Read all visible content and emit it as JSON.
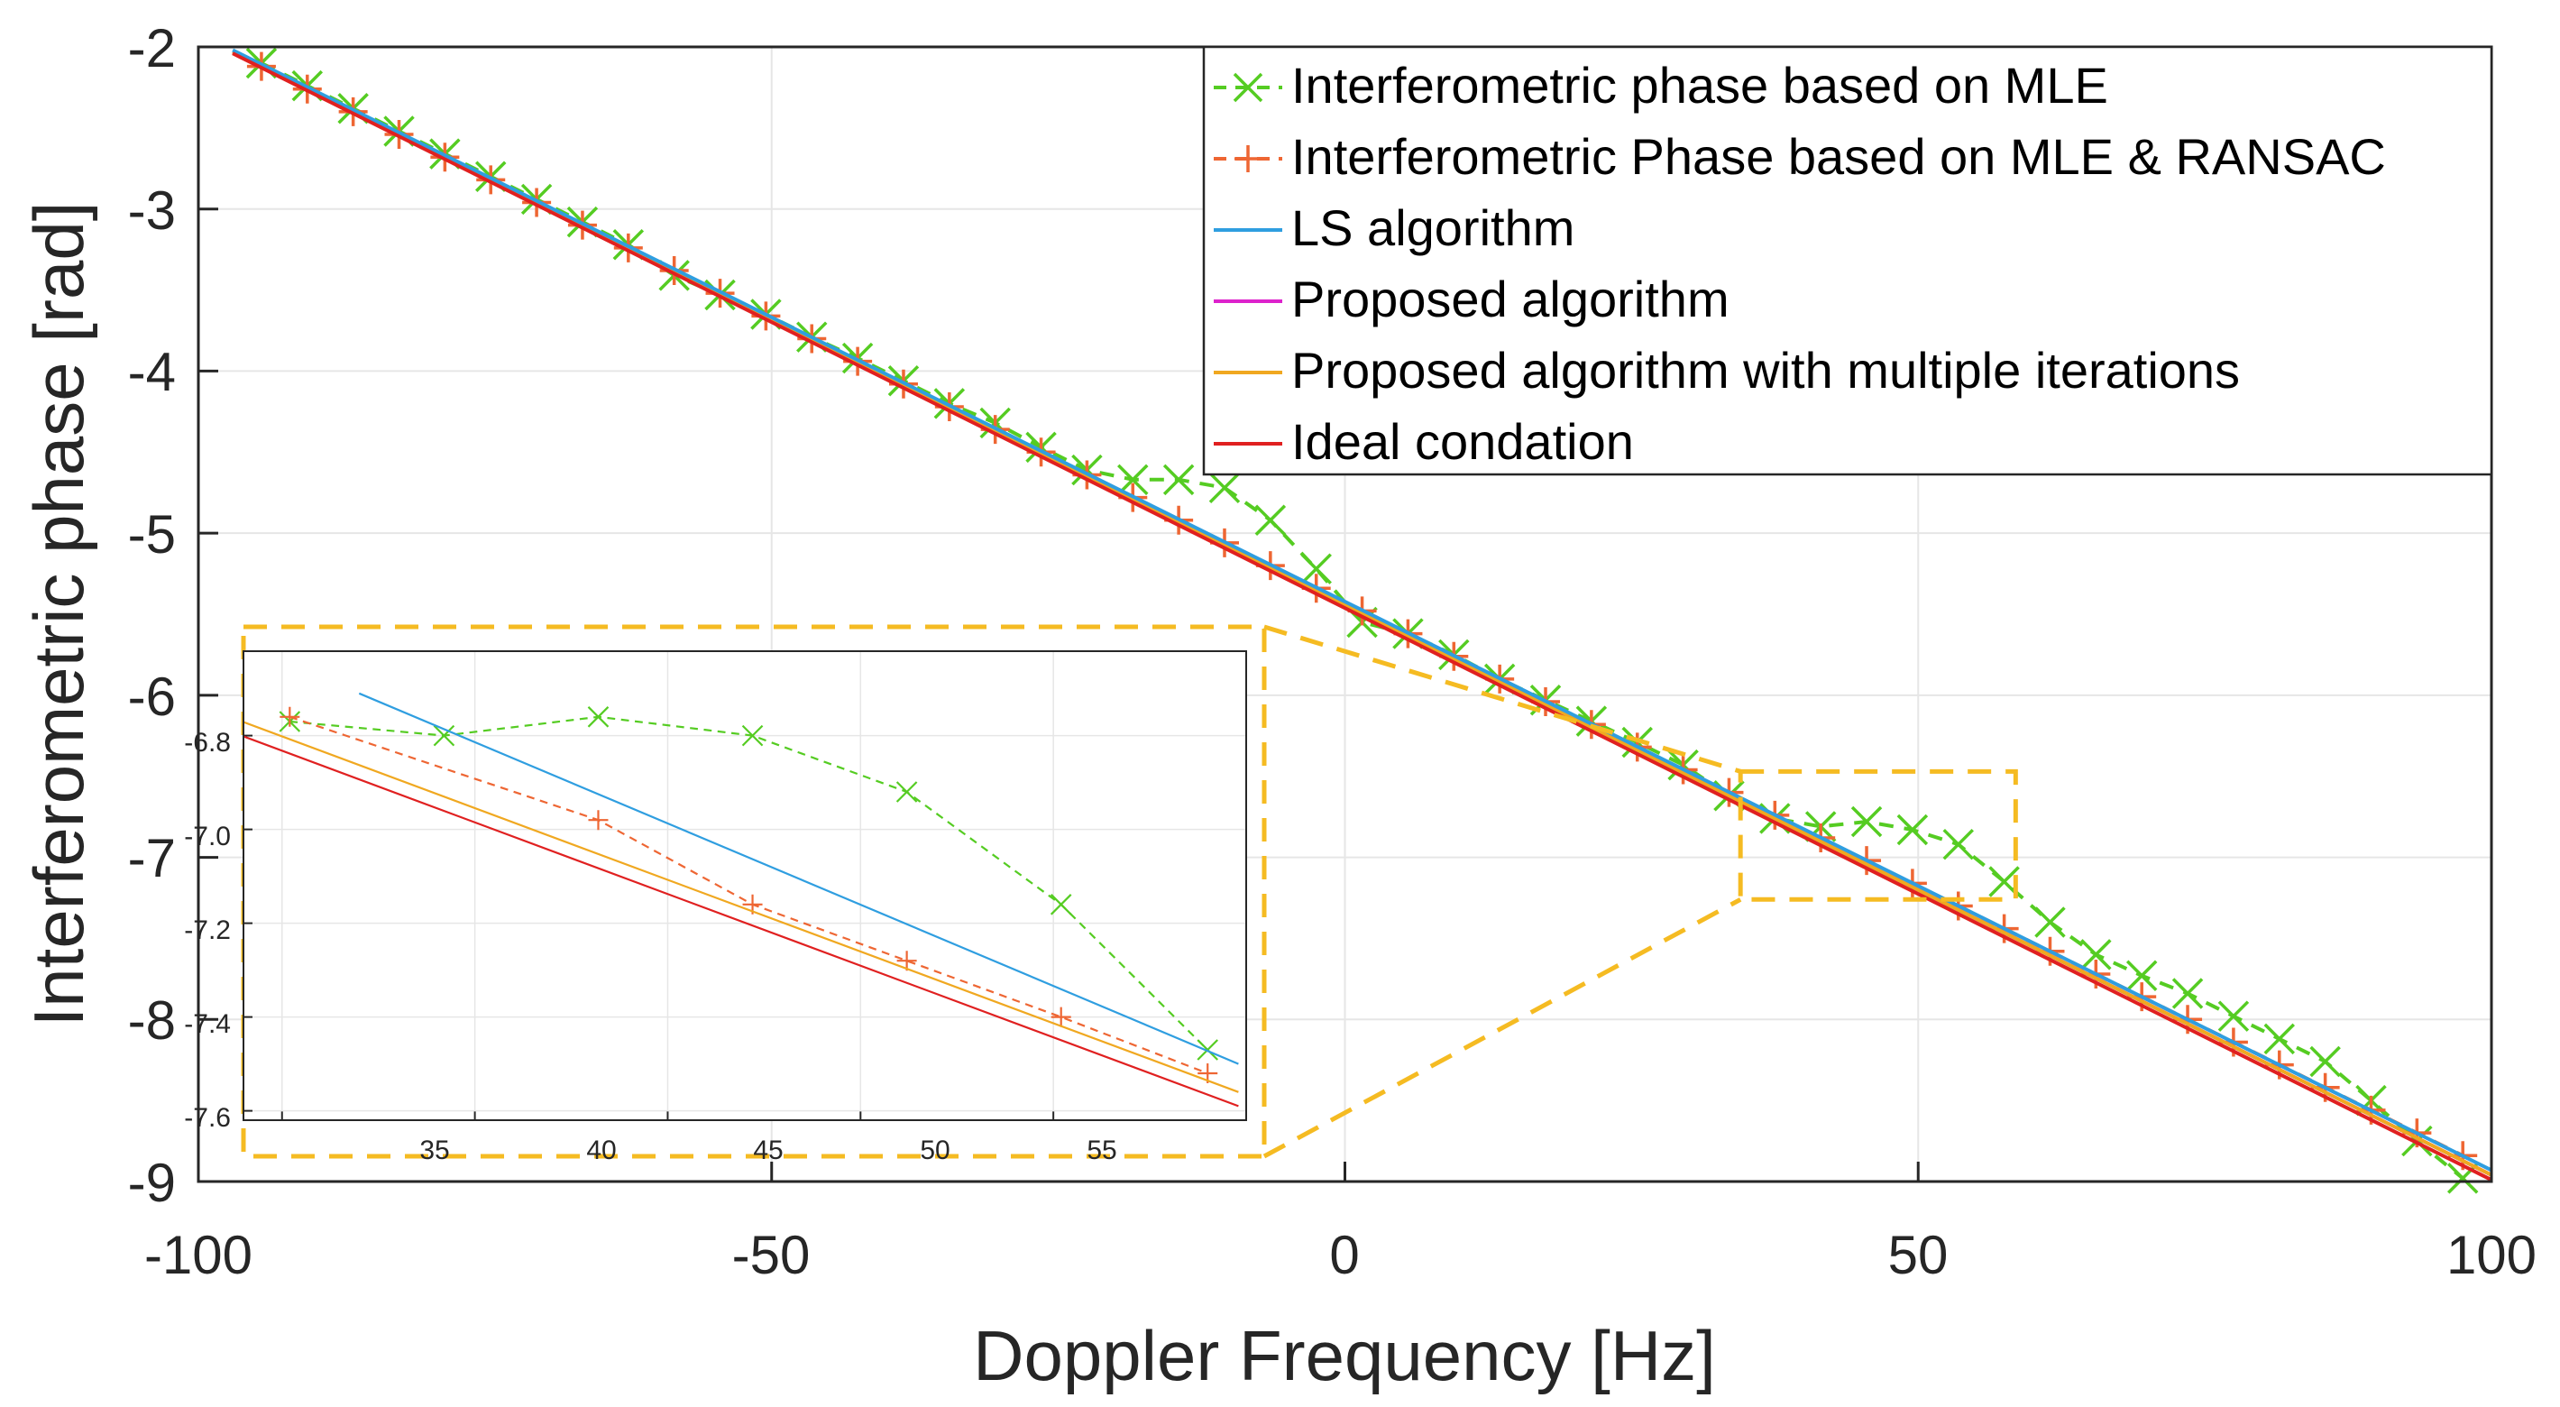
{
  "chart_data": {
    "type": "line",
    "title": "",
    "xlabel": "Doppler Frequency [Hz]",
    "ylabel": "Interferometric phase [rad]",
    "xlim": [
      -100,
      100
    ],
    "ylim": [
      -9,
      -2
    ],
    "xticks": [
      "-100",
      "-50",
      "0",
      "50",
      "100"
    ],
    "yticks": [
      "-2",
      "-3",
      "-4",
      "-5",
      "-6",
      "-7",
      "-8",
      "-9"
    ],
    "grid": true,
    "legend_position": "top-right",
    "series": [
      {
        "name": "Interferometric phase based on MLE",
        "color": "#55cc22",
        "style": "dashed",
        "marker": "x",
        "x": [
          -94.5,
          -90.5,
          -86.5,
          -82.5,
          -78.5,
          -74.5,
          -70.5,
          -66.5,
          -62.5,
          -58.5,
          -54.5,
          -50.5,
          -46.5,
          -42.5,
          -38.5,
          -34.5,
          -30.5,
          -26.5,
          -22.5,
          -18.5,
          -14.5,
          -10.5,
          -6.5,
          -2.5,
          1.5,
          5.5,
          9.5,
          13.5,
          17.5,
          21.5,
          25.5,
          29.5,
          33.5,
          37.5,
          41.5,
          45.5,
          49.5,
          53.5,
          57.5,
          61.5,
          65.5,
          69.5,
          73.5,
          77.5,
          81.5,
          85.5,
          89.5,
          93.5,
          97.5
        ],
        "y": [
          -2.1,
          -2.24,
          -2.38,
          -2.52,
          -2.66,
          -2.8,
          -2.94,
          -3.08,
          -3.22,
          -3.41,
          -3.53,
          -3.65,
          -3.79,
          -3.92,
          -4.06,
          -4.2,
          -4.32,
          -4.47,
          -4.61,
          -4.67,
          -4.67,
          -4.72,
          -4.92,
          -5.22,
          -5.55,
          -5.62,
          -5.75,
          -5.9,
          -6.03,
          -6.16,
          -6.29,
          -6.43,
          -6.62,
          -6.76,
          -6.81,
          -6.78,
          -6.83,
          -6.92,
          -7.15,
          -7.4,
          -7.6,
          -7.73,
          -7.84,
          -7.98,
          -8.12,
          -8.26,
          -8.5,
          -8.75,
          -8.98
        ]
      },
      {
        "name": "Interferometric Phase based on MLE & RANSAC",
        "color": "#ee6633",
        "style": "dashed",
        "marker": "+",
        "x": [
          -94.5,
          -90.5,
          -86.5,
          -82.5,
          -78.5,
          -74.5,
          -70.5,
          -66.5,
          -62.5,
          -58.5,
          -54.5,
          -50.5,
          -46.5,
          -42.5,
          -38.5,
          -34.5,
          -30.5,
          -26.5,
          -22.5,
          -18.5,
          -14.5,
          -10.5,
          -6.5,
          -2.5,
          1.5,
          5.5,
          9.5,
          13.5,
          17.5,
          21.5,
          25.5,
          29.5,
          33.5,
          37.5,
          41.5,
          45.5,
          49.5,
          53.5,
          57.5,
          61.5,
          65.5,
          69.5,
          73.5,
          77.5,
          81.5,
          85.5,
          89.5,
          93.5,
          97.5
        ],
        "y": [
          -2.12,
          -2.26,
          -2.4,
          -2.54,
          -2.68,
          -2.82,
          -2.96,
          -3.1,
          -3.24,
          -3.38,
          -3.52,
          -3.66,
          -3.8,
          -3.94,
          -4.08,
          -4.22,
          -4.36,
          -4.5,
          -4.64,
          -4.78,
          -4.92,
          -5.06,
          -5.2,
          -5.34,
          -5.48,
          -5.62,
          -5.76,
          -5.9,
          -6.04,
          -6.18,
          -6.32,
          -6.46,
          -6.6,
          -6.74,
          -6.88,
          -7.02,
          -7.16,
          -7.3,
          -7.44,
          -7.58,
          -7.72,
          -7.86,
          -8.0,
          -8.14,
          -8.28,
          -8.42,
          -8.56,
          -8.7,
          -8.84
        ]
      },
      {
        "name": "LS algorithm",
        "color": "#2f9ee0",
        "style": "solid",
        "x": [
          -97,
          100
        ],
        "y": [
          -2.02,
          -8.93
        ]
      },
      {
        "name": "Proposed algorithm",
        "color": "#dd22cc",
        "style": "solid",
        "x": [
          -97,
          100
        ],
        "y": [
          -2.03,
          -8.96
        ]
      },
      {
        "name": "Proposed algorithm with multiple iterations",
        "color": "#f0a820",
        "style": "solid",
        "x": [
          -97,
          100
        ],
        "y": [
          -2.03,
          -8.96
        ]
      },
      {
        "name": "Ideal condation",
        "color": "#e02020",
        "style": "solid",
        "x": [
          -97,
          100
        ],
        "y": [
          -2.04,
          -8.99
        ]
      }
    ],
    "inset": {
      "xlim": [
        34,
        60
      ],
      "ylim": [
        -7.62,
        -6.62
      ],
      "xticks": [
        "35",
        "40",
        "45",
        "50",
        "55"
      ],
      "yticks": [
        "-6.8",
        "-7.0",
        "-7.2",
        "-7.4",
        "-7.6"
      ],
      "highlight_box_x": [
        34.5,
        58.5
      ],
      "highlight_box_y": [
        -7.26,
        -6.47
      ],
      "series": [
        {
          "ref": "Interferometric phase based on MLE",
          "x": [
            35.2,
            39.2,
            43.2,
            47.2,
            51.2,
            55.2,
            59.0
          ],
          "y": [
            -6.77,
            -6.8,
            -6.76,
            -6.8,
            -6.92,
            -7.16,
            -7.47
          ]
        },
        {
          "ref": "Interferometric Phase based on MLE & RANSAC",
          "x": [
            35.2,
            43.2,
            47.2,
            51.2,
            55.2,
            59.0
          ],
          "y": [
            -6.76,
            -6.98,
            -7.16,
            -7.28,
            -7.4,
            -7.52
          ]
        },
        {
          "ref": "LS algorithm",
          "x": [
            37,
            59.8
          ],
          "y": [
            -6.71,
            -7.5
          ]
        },
        {
          "ref": "Proposed algorithm with multiple iterations",
          "x": [
            32,
            59.8
          ],
          "y": [
            -6.71,
            -7.56
          ]
        },
        {
          "ref": "Ideal condation",
          "x": [
            31,
            59.8
          ],
          "y": [
            -6.71,
            -7.59
          ]
        }
      ]
    }
  }
}
